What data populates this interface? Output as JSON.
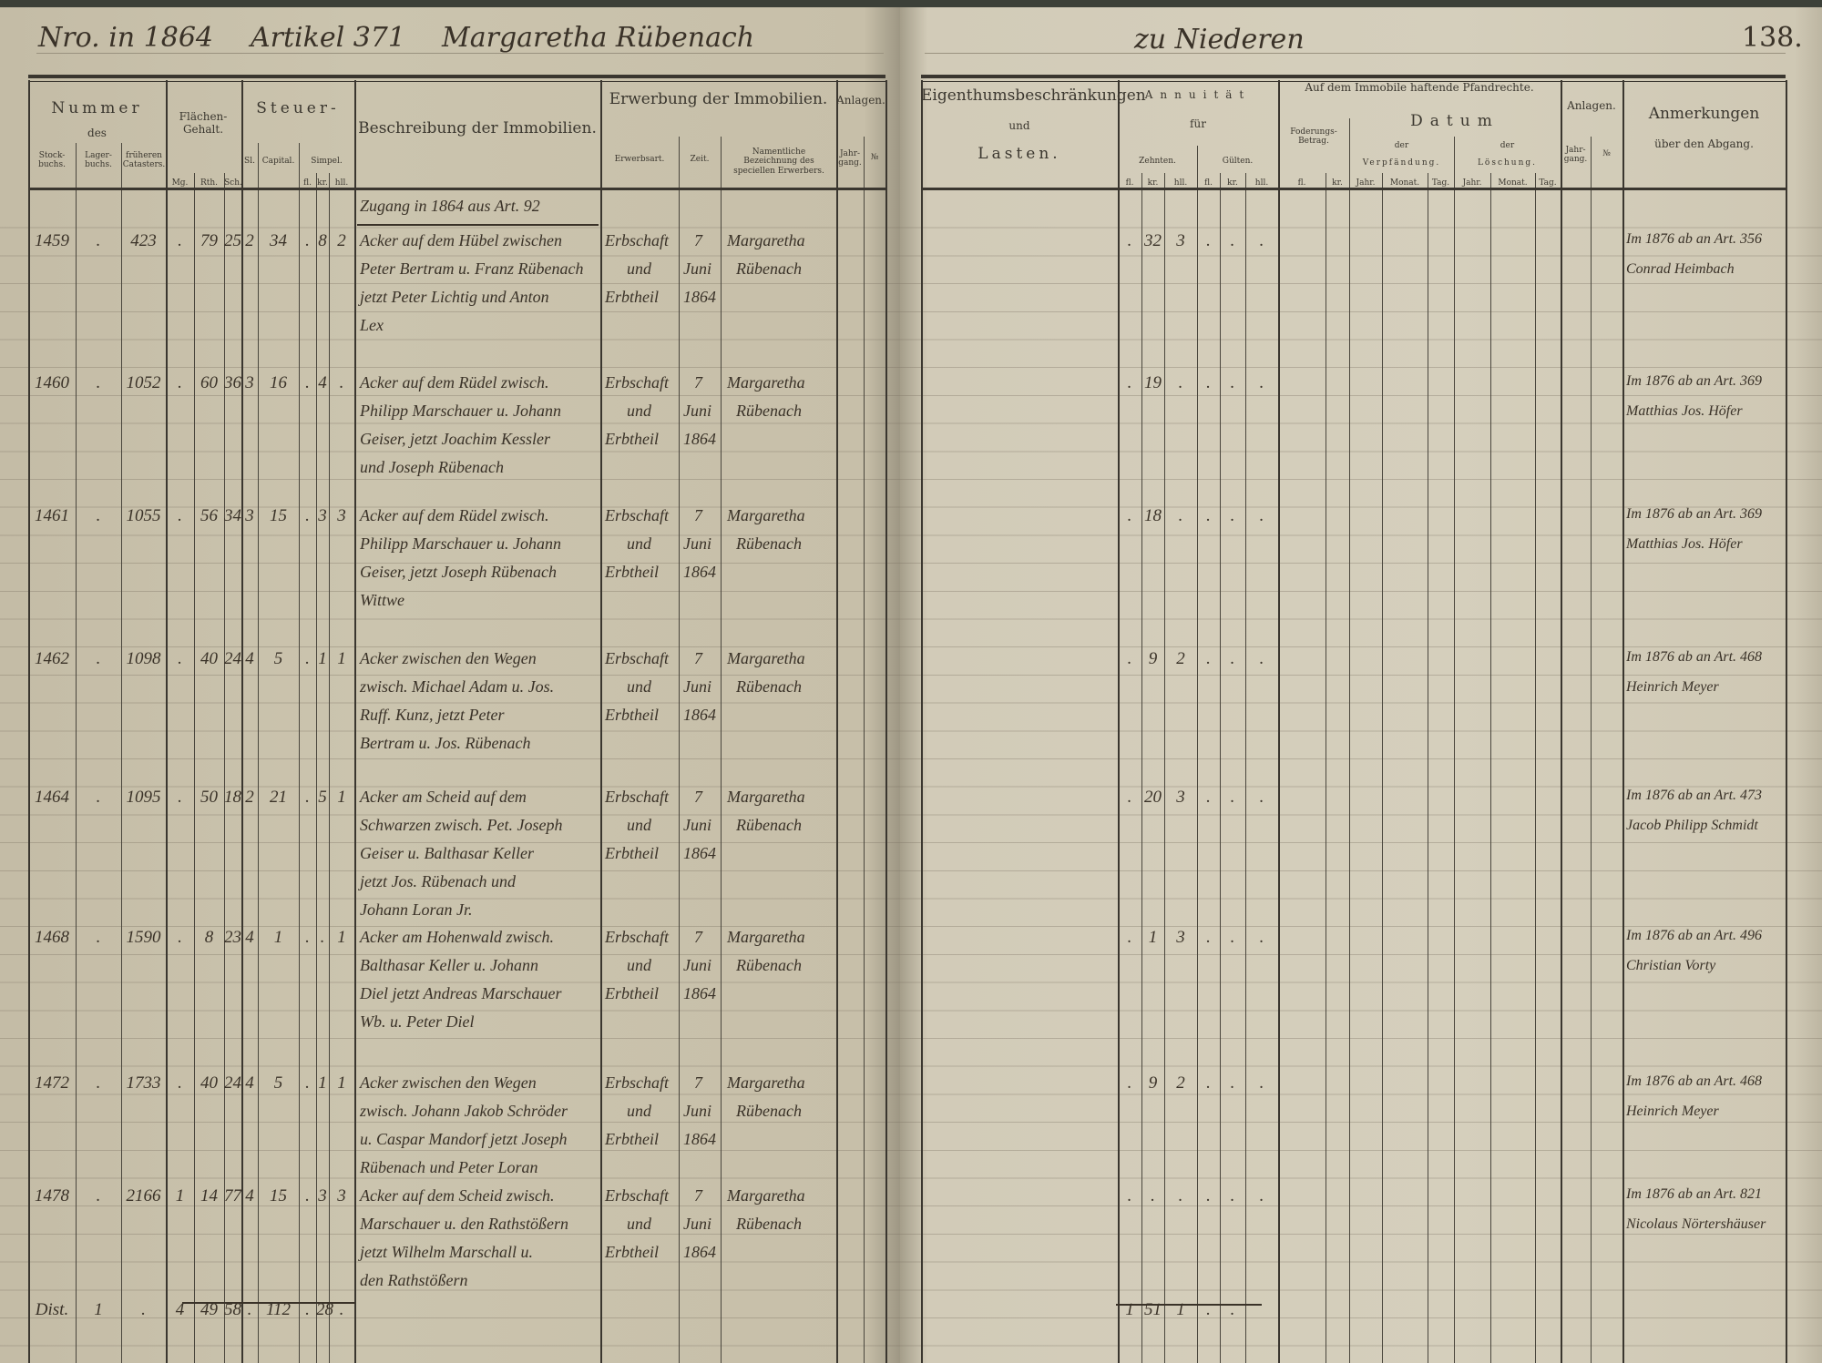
{
  "header": {
    "left": {
      "entry_year": "Nro. in 1864",
      "article": "Artikel 371",
      "owner": "Margaretha Rübenach"
    },
    "right": {
      "place": "zu Niederen",
      "page_number": "138."
    }
  },
  "columns": {
    "nummer": "Nummer",
    "des": "des",
    "stockbuchs": "Stock-buchs.",
    "lagerbuchs": "Lager-buchs.",
    "frueheren": "früheren Catasters.",
    "flaechen": "Flächen-Gehalt.",
    "mg": "Mg.",
    "rth": "Rth.",
    "sch": "Sch.",
    "steuer": "Steuer-",
    "sl": "Sl.",
    "capital": "Capital.",
    "simpel": "Simpel.",
    "fl": "fl.",
    "kr": "kr.",
    "hll": "hll.",
    "beschreibung": "Beschreibung der Immobilien.",
    "erwerbung": "Erwerbung der Immobilien.",
    "erwerbsart": "Erwerbsart.",
    "zeit": "Zeit.",
    "erwerber": "Namentliche Bezeichnung des speciellen Erwerbers.",
    "anlagen": "Anlagen.",
    "jahrgang": "Jahr-gang.",
    "nr": "№",
    "eigenthum": "Eigenthumsbeschränkungen",
    "und": "und",
    "lasten": "Lasten.",
    "annuitaet": "Annuität",
    "fuer": "für",
    "zehnten": "Zehnten.",
    "gulten": "Gülten.",
    "pfandrechte": "Auf dem Immobile haftende Pfandrechte.",
    "foderung": "Foderungs-Betrag.",
    "datum": "Datum",
    "der": "der",
    "verpfaendung": "Verpfändung.",
    "loeschung": "Löschung.",
    "jahr": "Jahr.",
    "monat": "Monat.",
    "tag": "Tag.",
    "anmerkungen": "Anmerkungen",
    "abgang": "über den Abgang."
  },
  "intro_note": "Zugang in 1864 aus Art. 92",
  "rows": [
    {
      "stock": "1459",
      "lager": ".",
      "frueheren": "423",
      "mg": ".",
      "rth": "79",
      "sch": "25",
      "sl": "2",
      "capital": "34",
      "s_fl": ".",
      "s_kr": "8",
      "s_hll": "2",
      "description": [
        "Acker auf dem Hübel zwischen",
        "Peter Bertram u. Franz Rübenach",
        "jetzt Peter Lichtig und Anton",
        "Lex"
      ],
      "erwerbsart": [
        "Erbschaft",
        "und",
        "Erbtheil"
      ],
      "zeit": [
        "7",
        "Juni",
        "1864"
      ],
      "erwerber": [
        "Margaretha",
        "Rübenach"
      ],
      "z_fl": ".",
      "z_kr": "32",
      "z_hll": "3",
      "g_fl": ".",
      "g_kr": ".",
      "g_hll": ".",
      "remarks": [
        "Im 1876 ab an Art. 356",
        "Conrad Heimbach"
      ]
    },
    {
      "stock": "1460",
      "lager": ".",
      "frueheren": "1052",
      "mg": ".",
      "rth": "60",
      "sch": "36",
      "sl": "3",
      "capital": "16",
      "s_fl": ".",
      "s_kr": "4",
      "s_hll": ".",
      "description": [
        "Acker auf dem Rüdel zwisch.",
        "Philipp Marschauer u. Johann",
        "Geiser, jetzt Joachim Kessler",
        "und Joseph Rübenach"
      ],
      "erwerbsart": [
        "Erbschaft",
        "und",
        "Erbtheil"
      ],
      "zeit": [
        "7",
        "Juni",
        "1864"
      ],
      "erwerber": [
        "Margaretha",
        "Rübenach"
      ],
      "z_fl": ".",
      "z_kr": "19",
      "z_hll": ".",
      "g_fl": ".",
      "g_kr": ".",
      "g_hll": ".",
      "remarks": [
        "Im 1876 ab an Art. 369",
        "Matthias Jos. Höfer"
      ]
    },
    {
      "stock": "1461",
      "lager": ".",
      "frueheren": "1055",
      "mg": ".",
      "rth": "56",
      "sch": "34",
      "sl": "3",
      "capital": "15",
      "s_fl": ".",
      "s_kr": "3",
      "s_hll": "3",
      "description": [
        "Acker auf dem Rüdel zwisch.",
        "Philipp Marschauer u. Johann",
        "Geiser, jetzt Joseph Rübenach",
        "Wittwe"
      ],
      "erwerbsart": [
        "Erbschaft",
        "und",
        "Erbtheil"
      ],
      "zeit": [
        "7",
        "Juni",
        "1864"
      ],
      "erwerber": [
        "Margaretha",
        "Rübenach"
      ],
      "z_fl": ".",
      "z_kr": "18",
      "z_hll": ".",
      "g_fl": ".",
      "g_kr": ".",
      "g_hll": ".",
      "remarks": [
        "Im 1876 ab an Art. 369",
        "Matthias Jos. Höfer"
      ]
    },
    {
      "stock": "1462",
      "lager": ".",
      "frueheren": "1098",
      "mg": ".",
      "rth": "40",
      "sch": "24",
      "sl": "4",
      "capital": "5",
      "s_fl": ".",
      "s_kr": "1",
      "s_hll": "1",
      "description": [
        "Acker zwischen den Wegen",
        "zwisch. Michael Adam u. Jos.",
        "Ruff. Kunz, jetzt Peter",
        "Bertram u. Jos. Rübenach"
      ],
      "erwerbsart": [
        "Erbschaft",
        "und",
        "Erbtheil"
      ],
      "zeit": [
        "7",
        "Juni",
        "1864"
      ],
      "erwerber": [
        "Margaretha",
        "Rübenach"
      ],
      "z_fl": ".",
      "z_kr": "9",
      "z_hll": "2",
      "g_fl": ".",
      "g_kr": ".",
      "g_hll": ".",
      "remarks": [
        "Im 1876 ab an Art. 468",
        "Heinrich Meyer"
      ]
    },
    {
      "stock": "1464",
      "lager": ".",
      "frueheren": "1095",
      "mg": ".",
      "rth": "50",
      "sch": "18",
      "sl": "2",
      "capital": "21",
      "s_fl": ".",
      "s_kr": "5",
      "s_hll": "1",
      "description": [
        "Acker am Scheid auf dem",
        "Schwarzen zwisch. Pet. Joseph",
        "Geiser u. Balthasar Keller",
        "jetzt Jos. Rübenach und",
        "Johann Loran Jr."
      ],
      "erwerbsart": [
        "Erbschaft",
        "und",
        "Erbtheil"
      ],
      "zeit": [
        "7",
        "Juni",
        "1864"
      ],
      "erwerber": [
        "Margaretha",
        "Rübenach"
      ],
      "z_fl": ".",
      "z_kr": "20",
      "z_hll": "3",
      "g_fl": ".",
      "g_kr": ".",
      "g_hll": ".",
      "remarks": [
        "Im 1876 ab an Art. 473",
        "Jacob Philipp Schmidt"
      ]
    },
    {
      "stock": "1468",
      "lager": ".",
      "frueheren": "1590",
      "mg": ".",
      "rth": "8",
      "sch": "23",
      "sl": "4",
      "capital": "1",
      "s_fl": ".",
      "s_kr": ".",
      "s_hll": "1",
      "description": [
        "Acker am Hohenwald zwisch.",
        "Balthasar Keller u. Johann",
        "Diel jetzt Andreas Marschauer",
        "Wb. u. Peter Diel"
      ],
      "erwerbsart": [
        "Erbschaft",
        "und",
        "Erbtheil"
      ],
      "zeit": [
        "7",
        "Juni",
        "1864"
      ],
      "erwerber": [
        "Margaretha",
        "Rübenach"
      ],
      "z_fl": ".",
      "z_kr": "1",
      "z_hll": "3",
      "g_fl": ".",
      "g_kr": ".",
      "g_hll": ".",
      "remarks": [
        "Im 1876 ab an Art. 496",
        "Christian Vorty"
      ]
    },
    {
      "stock": "1472",
      "lager": ".",
      "frueheren": "1733",
      "mg": ".",
      "rth": "40",
      "sch": "24",
      "sl": "4",
      "capital": "5",
      "s_fl": ".",
      "s_kr": "1",
      "s_hll": "1",
      "description": [
        "Acker zwischen den Wegen",
        "zwisch. Johann Jakob Schröder",
        "u. Caspar Mandorf jetzt Joseph",
        "Rübenach und Peter Loran"
      ],
      "erwerbsart": [
        "Erbschaft",
        "und",
        "Erbtheil"
      ],
      "zeit": [
        "7",
        "Juni",
        "1864"
      ],
      "erwerber": [
        "Margaretha",
        "Rübenach"
      ],
      "z_fl": ".",
      "z_kr": "9",
      "z_hll": "2",
      "g_fl": ".",
      "g_kr": ".",
      "g_hll": ".",
      "remarks": [
        "Im 1876 ab an Art. 468",
        "Heinrich Meyer"
      ]
    },
    {
      "stock": "1478",
      "lager": ".",
      "frueheren": "2166",
      "mg": "1",
      "rth": "14",
      "sch": "77",
      "sl": "4",
      "capital": "15",
      "s_fl": ".",
      "s_kr": "3",
      "s_hll": "3",
      "description": [
        "Acker auf dem Scheid zwisch.",
        "Marschauer u. den Rathstößern",
        "jetzt Wilhelm Marschall u.",
        "den Rathstößern"
      ],
      "erwerbsart": [
        "Erbschaft",
        "und",
        "Erbtheil"
      ],
      "zeit": [
        "7",
        "Juni",
        "1864"
      ],
      "erwerber": [
        "Margaretha",
        "Rübenach"
      ],
      "z_fl": ".",
      "z_kr": ".",
      "z_hll": ".",
      "g_fl": ".",
      "g_kr": ".",
      "g_hll": ".",
      "remarks": [
        "Im 1876 ab an Art. 821",
        "Nicolaus Nörtershäuser"
      ]
    }
  ],
  "totals": {
    "stock": "Dist.",
    "lager": "1",
    "frueheren": ".",
    "mg": "4",
    "rth": "49",
    "sch": "58",
    "sl": ".",
    "capital": "112",
    "s_fl": ".",
    "s_kr": "28",
    "s_hll": ".",
    "z_fl": "1",
    "z_kr": "51",
    "z_hll": "1",
    "g_fl": ".",
    "g_kr": "."
  }
}
